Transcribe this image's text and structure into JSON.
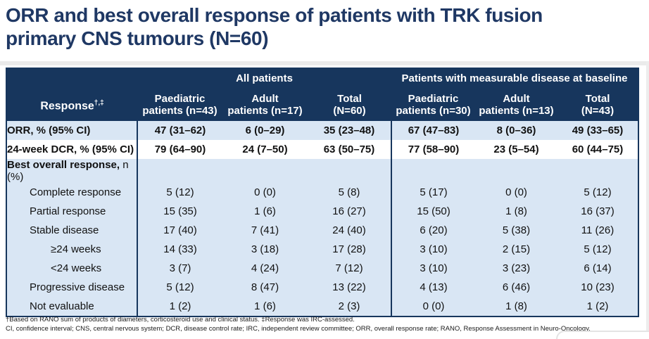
{
  "title": {
    "lines": [
      "ORR and best overall response of patients with TRK fusion",
      "primary CNS tumours (N=60)"
    ]
  },
  "colors": {
    "title_navy": "#1F3864",
    "header_navy": "#17365D",
    "row_light_blue": "#D9E6F4",
    "row_white": "#FFFFFF",
    "table_border": "#17365D"
  },
  "table": {
    "group_headers": [
      "All patients",
      "Patients with measurable disease at baseline"
    ],
    "response_header": {
      "label": "Response",
      "superscript": "†,‡"
    },
    "column_headers": [
      "Paediatric\npatients (n=43)",
      "Adult\npatients (n=17)",
      "Total\n(N=60)",
      "Paediatric\npatients (n=30)",
      "Adult\npatients (n=13)",
      "Total\n(N=43)"
    ],
    "rows": [
      {
        "label_strong": "ORR, % (95% CI)",
        "label_normal": "",
        "indent": 0,
        "bg": "blue",
        "bold_values": true,
        "values": [
          "47 (31–62)",
          "6 (0–29)",
          "35 (23–48)",
          "67 (47–83)",
          "8 (0–36)",
          "49 (33–65)"
        ]
      },
      {
        "label_strong": "24-week DCR, % (95% CI)",
        "label_normal": "",
        "indent": 0,
        "bg": "white",
        "bold_values": true,
        "values": [
          "79 (64–90)",
          "24 (7–50)",
          "63 (50–75)",
          "77 (58–90)",
          "23 (5–54)",
          "60 (44–75)"
        ]
      },
      {
        "label_strong": "Best overall response,",
        "label_normal": " n (%)",
        "indent": 0,
        "bg": "blue",
        "bold_values": false,
        "values": [
          "",
          "",
          "",
          "",
          "",
          ""
        ]
      },
      {
        "label_strong": "",
        "label_normal": "Complete response",
        "indent": 1,
        "bg": "blue",
        "bold_values": false,
        "values": [
          "5 (12)",
          "0 (0)",
          "5 (8)",
          "5 (17)",
          "0 (0)",
          "5 (12)"
        ]
      },
      {
        "label_strong": "",
        "label_normal": "Partial response",
        "indent": 1,
        "bg": "blue",
        "bold_values": false,
        "values": [
          "15 (35)",
          "1 (6)",
          "16 (27)",
          "15 (50)",
          "1 (8)",
          "16 (37)"
        ]
      },
      {
        "label_strong": "",
        "label_normal": "Stable disease",
        "indent": 1,
        "bg": "blue",
        "bold_values": false,
        "values": [
          "17 (40)",
          "7 (41)",
          "24 (40)",
          "6 (20)",
          "5 (38)",
          "11 (26)"
        ]
      },
      {
        "label_strong": "",
        "label_normal": "≥24 weeks",
        "indent": 2,
        "bg": "blue",
        "bold_values": false,
        "values": [
          "14 (33)",
          "3 (18)",
          "17 (28)",
          "3 (10)",
          "2 (15)",
          "5 (12)"
        ]
      },
      {
        "label_strong": "",
        "label_normal": "<24 weeks",
        "indent": 2,
        "bg": "blue",
        "bold_values": false,
        "values": [
          "3 (7)",
          "4 (24)",
          "7 (12)",
          "3 (10)",
          "3 (23)",
          "6 (14)"
        ]
      },
      {
        "label_strong": "",
        "label_normal": "Progressive disease",
        "indent": 1,
        "bg": "blue",
        "bold_values": false,
        "values": [
          "5 (12)",
          "8 (47)",
          "13 (22)",
          "4 (13)",
          "6 (46)",
          "10 (23)"
        ]
      },
      {
        "label_strong": "",
        "label_normal": "Not evaluable",
        "indent": 1,
        "bg": "blue",
        "bold_values": false,
        "values": [
          "1 (2)",
          "1 (6)",
          "2 (3)",
          "0 (0)",
          "1 (8)",
          "1 (2)"
        ]
      }
    ]
  },
  "footnotes": [
    "†Based on RANO sum of products of diameters, corticosteroid use and clinical status. ‡Response was IRC-assessed.",
    "CI, confidence interval; CNS, central nervous system; DCR, disease control rate; IRC, independent review committee; ORR, overall response rate; RANO, Response Assessment in Neuro-Oncology."
  ]
}
